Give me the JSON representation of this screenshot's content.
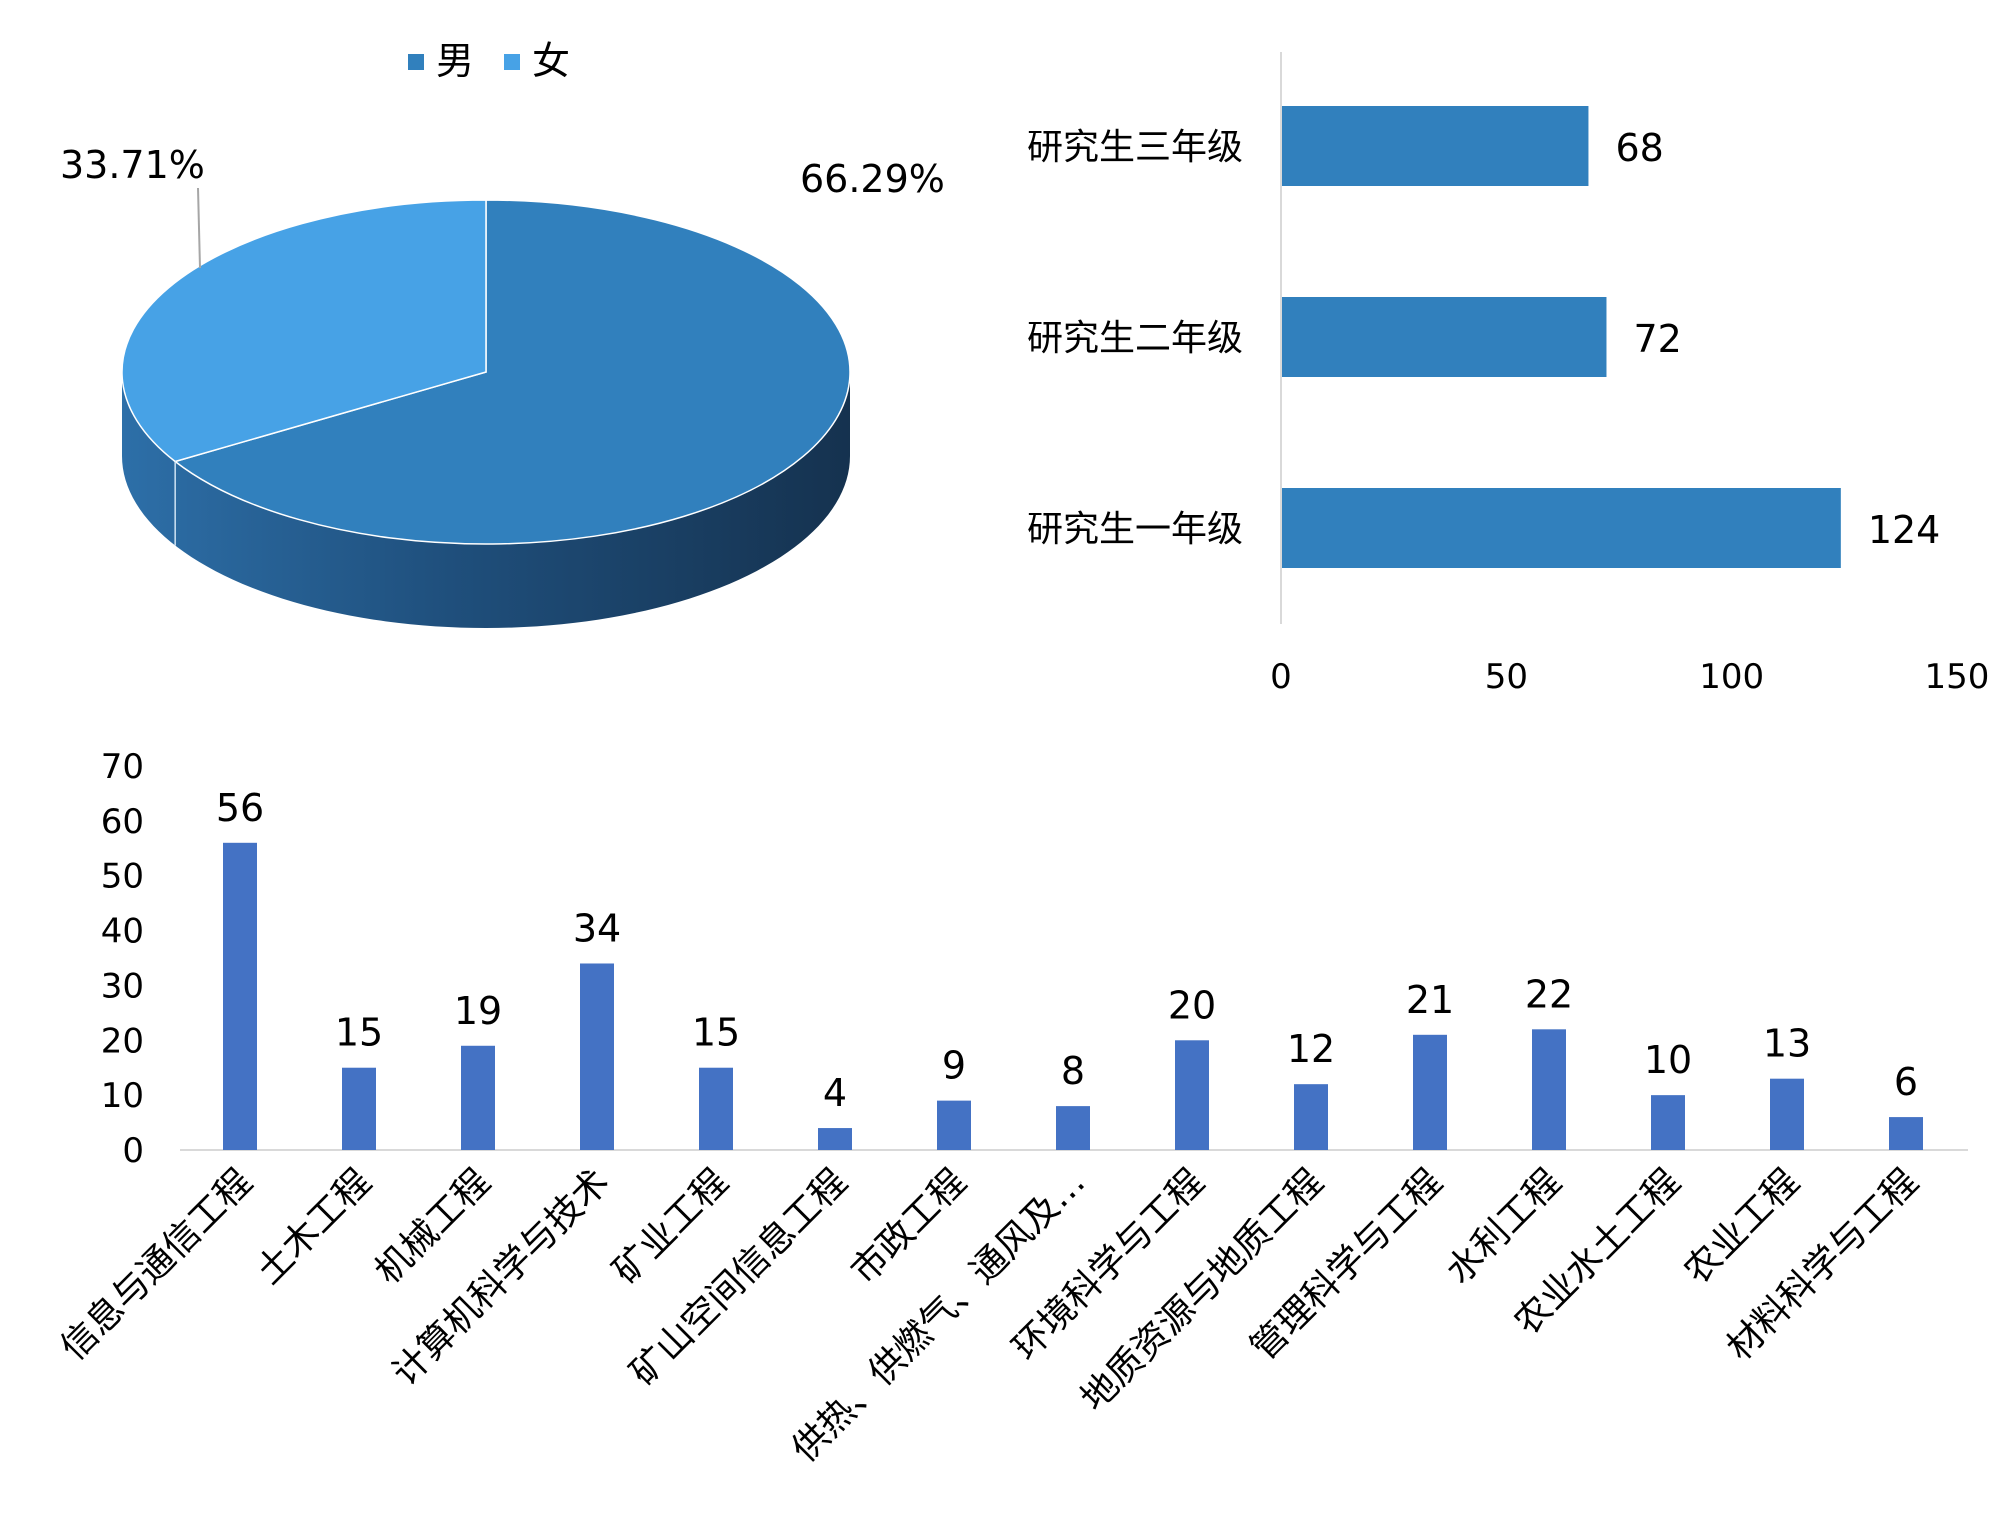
{
  "chart_data": [
    {
      "type": "pie",
      "title": "",
      "legend": {
        "position": "top",
        "entries": [
          "男",
          "女"
        ]
      },
      "slices": [
        {
          "label": "男",
          "value": 66.29,
          "display": "66.29%",
          "color": "#3180bd"
        },
        {
          "label": "女",
          "value": 33.71,
          "display": "33.71%",
          "color": "#47a2e6"
        }
      ],
      "style": "3d"
    },
    {
      "type": "bar",
      "orientation": "horizontal",
      "title": "",
      "categories": [
        "研究生三年级",
        "研究生二年级",
        "研究生一年级"
      ],
      "values": [
        68,
        72,
        124
      ],
      "value_labels": [
        "68",
        "72",
        "124"
      ],
      "x_ticks": [
        "0",
        "50",
        "100",
        "150"
      ],
      "xlim": [
        0,
        150
      ],
      "color": "#3180bd",
      "grid": false
    },
    {
      "type": "bar",
      "orientation": "vertical",
      "title": "",
      "categories": [
        "信息与通信工程",
        "土木工程",
        "机械工程",
        "计算机科学与技术",
        "矿业工程",
        "矿山空间信息工程",
        "市政工程",
        "供热、供燃气、通风及…",
        "环境科学与工程",
        "地质资源与地质工程",
        "管理科学与工程",
        "水利工程",
        "农业水土工程",
        "农业工程",
        "材料科学与工程"
      ],
      "values": [
        56,
        15,
        19,
        34,
        15,
        4,
        9,
        8,
        20,
        12,
        21,
        22,
        10,
        13,
        6
      ],
      "value_labels": [
        "56",
        "15",
        "19",
        "34",
        "15",
        "4",
        "9",
        "8",
        "20",
        "12",
        "21",
        "22",
        "10",
        "13",
        "6"
      ],
      "y_ticks": [
        "0",
        "10",
        "20",
        "30",
        "40",
        "50",
        "60",
        "70"
      ],
      "ylim": [
        0,
        70
      ],
      "color": "#4472c4",
      "grid": false
    }
  ]
}
